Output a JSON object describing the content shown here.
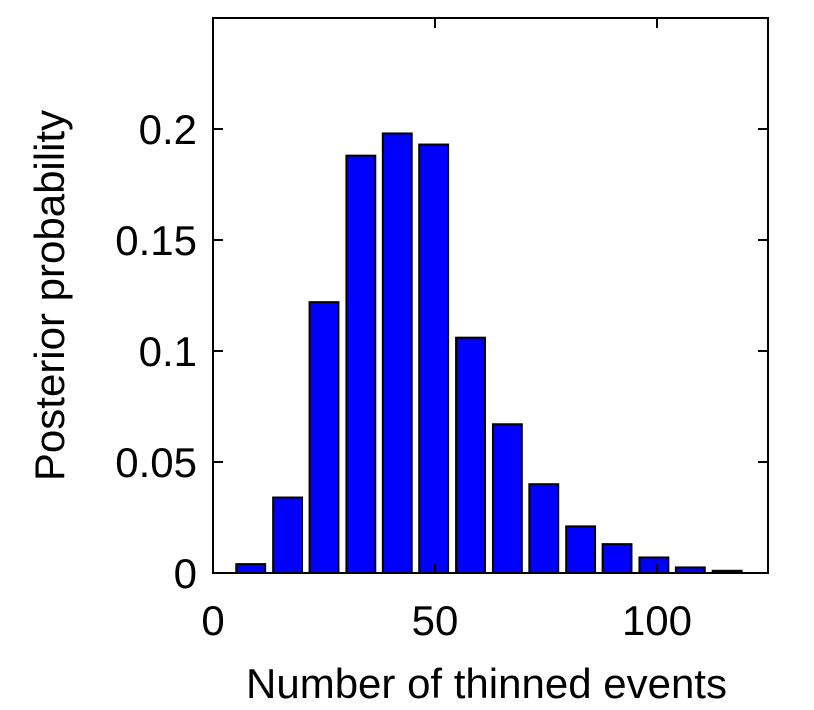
{
  "chart_data": {
    "type": "bar",
    "title": "",
    "xlabel": "Number of thinned events",
    "ylabel": "Posterior probability",
    "xlim": [
      0,
      125
    ],
    "ylim": [
      0,
      0.25
    ],
    "x_ticks": [
      0,
      50,
      100
    ],
    "x_tick_labels": [
      "0",
      "50",
      "100"
    ],
    "y_ticks": [
      0,
      0.05,
      0.1,
      0.15,
      0.2
    ],
    "y_tick_labels": [
      "0",
      "0.05",
      "0.1",
      "0.15",
      "0.2"
    ],
    "bar_width": 6.5,
    "x": [
      8.5,
      16.8,
      25.0,
      33.3,
      41.5,
      49.7,
      58.0,
      66.3,
      74.5,
      82.8,
      91.0,
      99.3,
      107.5,
      115.8
    ],
    "values": [
      0.004,
      0.034,
      0.122,
      0.188,
      0.198,
      0.193,
      0.106,
      0.067,
      0.04,
      0.021,
      0.013,
      0.007,
      0.0025,
      0.001
    ],
    "grid": false,
    "box": true,
    "colors": {
      "bar_fill": "#0000ff",
      "bar_edge": "#000000",
      "axis": "#000000",
      "background": "#ffffff"
    }
  }
}
